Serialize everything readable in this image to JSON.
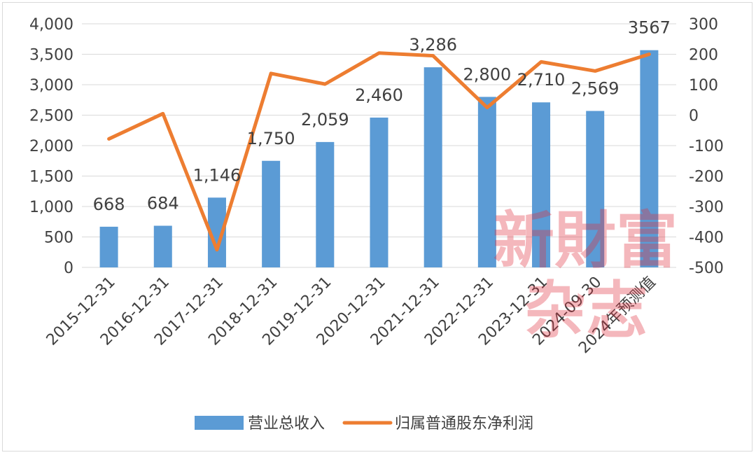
{
  "chart_data": {
    "type": "bar+line",
    "categories": [
      "2015-12-31",
      "2016-12-31",
      "2017-12-31",
      "2018-12-31",
      "2019-12-31",
      "2020-12-31",
      "2021-12-31",
      "2022-12-31",
      "2023-12-31",
      "2024-09-30",
      "2024年预测值"
    ],
    "series": [
      {
        "name": "营业总收入",
        "type": "bar",
        "axis": "left",
        "color": "#5b9bd5",
        "values": [
          668,
          684,
          1146,
          1750,
          2059,
          2460,
          3286,
          2800,
          2710,
          2569,
          3567
        ]
      },
      {
        "name": "归属普通股东净利润",
        "type": "line",
        "axis": "right",
        "color": "#ed7d31",
        "values": [
          -78,
          5,
          -442,
          137,
          102,
          204,
          195,
          25,
          175,
          145,
          200
        ]
      }
    ],
    "data_labels": [
      "668",
      "684",
      "1,146",
      "1,750",
      "2,059",
      "2,460",
      "3,286",
      "2,800",
      "2,710",
      "2,569",
      "3567"
    ],
    "y_left": {
      "min": 0,
      "max": 4000,
      "ticks": [
        "0",
        "500",
        "1,000",
        "1,500",
        "2,000",
        "2,500",
        "3,000",
        "3,500",
        "4,000"
      ]
    },
    "y_right": {
      "min": -500,
      "max": 300,
      "ticks": [
        "-500",
        "-400",
        "-300",
        "-200",
        "-100",
        "0",
        "100",
        "200",
        "300"
      ]
    },
    "grid": true,
    "legend": "bottom"
  },
  "watermark": {
    "line1": "新財富",
    "line2": "杂志",
    "color": "#e03040"
  }
}
